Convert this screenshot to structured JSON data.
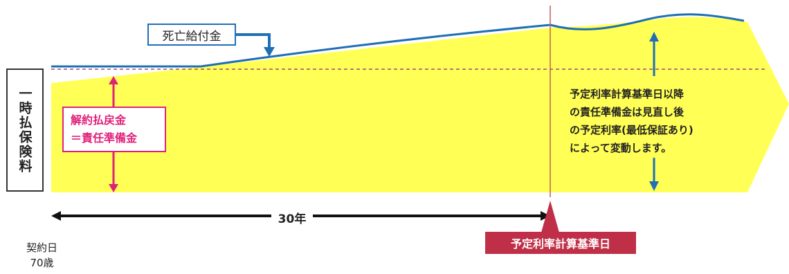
{
  "premium_label": "一時払保険料",
  "death_benefit_label": "死亡給付金",
  "surrender_label_line1": "解約払戻金",
  "surrender_label_line2": "＝責任準備金",
  "note_lines": [
    "予定利率計算基準日以降",
    "の責任準備金は見直し後",
    "の予定利率(最低保証あり)",
    "によって変動します。"
  ],
  "period_label": "30年",
  "base_date_label": "予定利率計算基準日",
  "contract_date_label": "契約日",
  "contract_age_label": "70歳",
  "colors": {
    "reserve_fill": "#ffff55",
    "death_line": "#1e6fb5",
    "surrender_accent": "#e0217a",
    "base_date_accent": "#bf3048",
    "dashed_line": "#9a4a7a"
  }
}
